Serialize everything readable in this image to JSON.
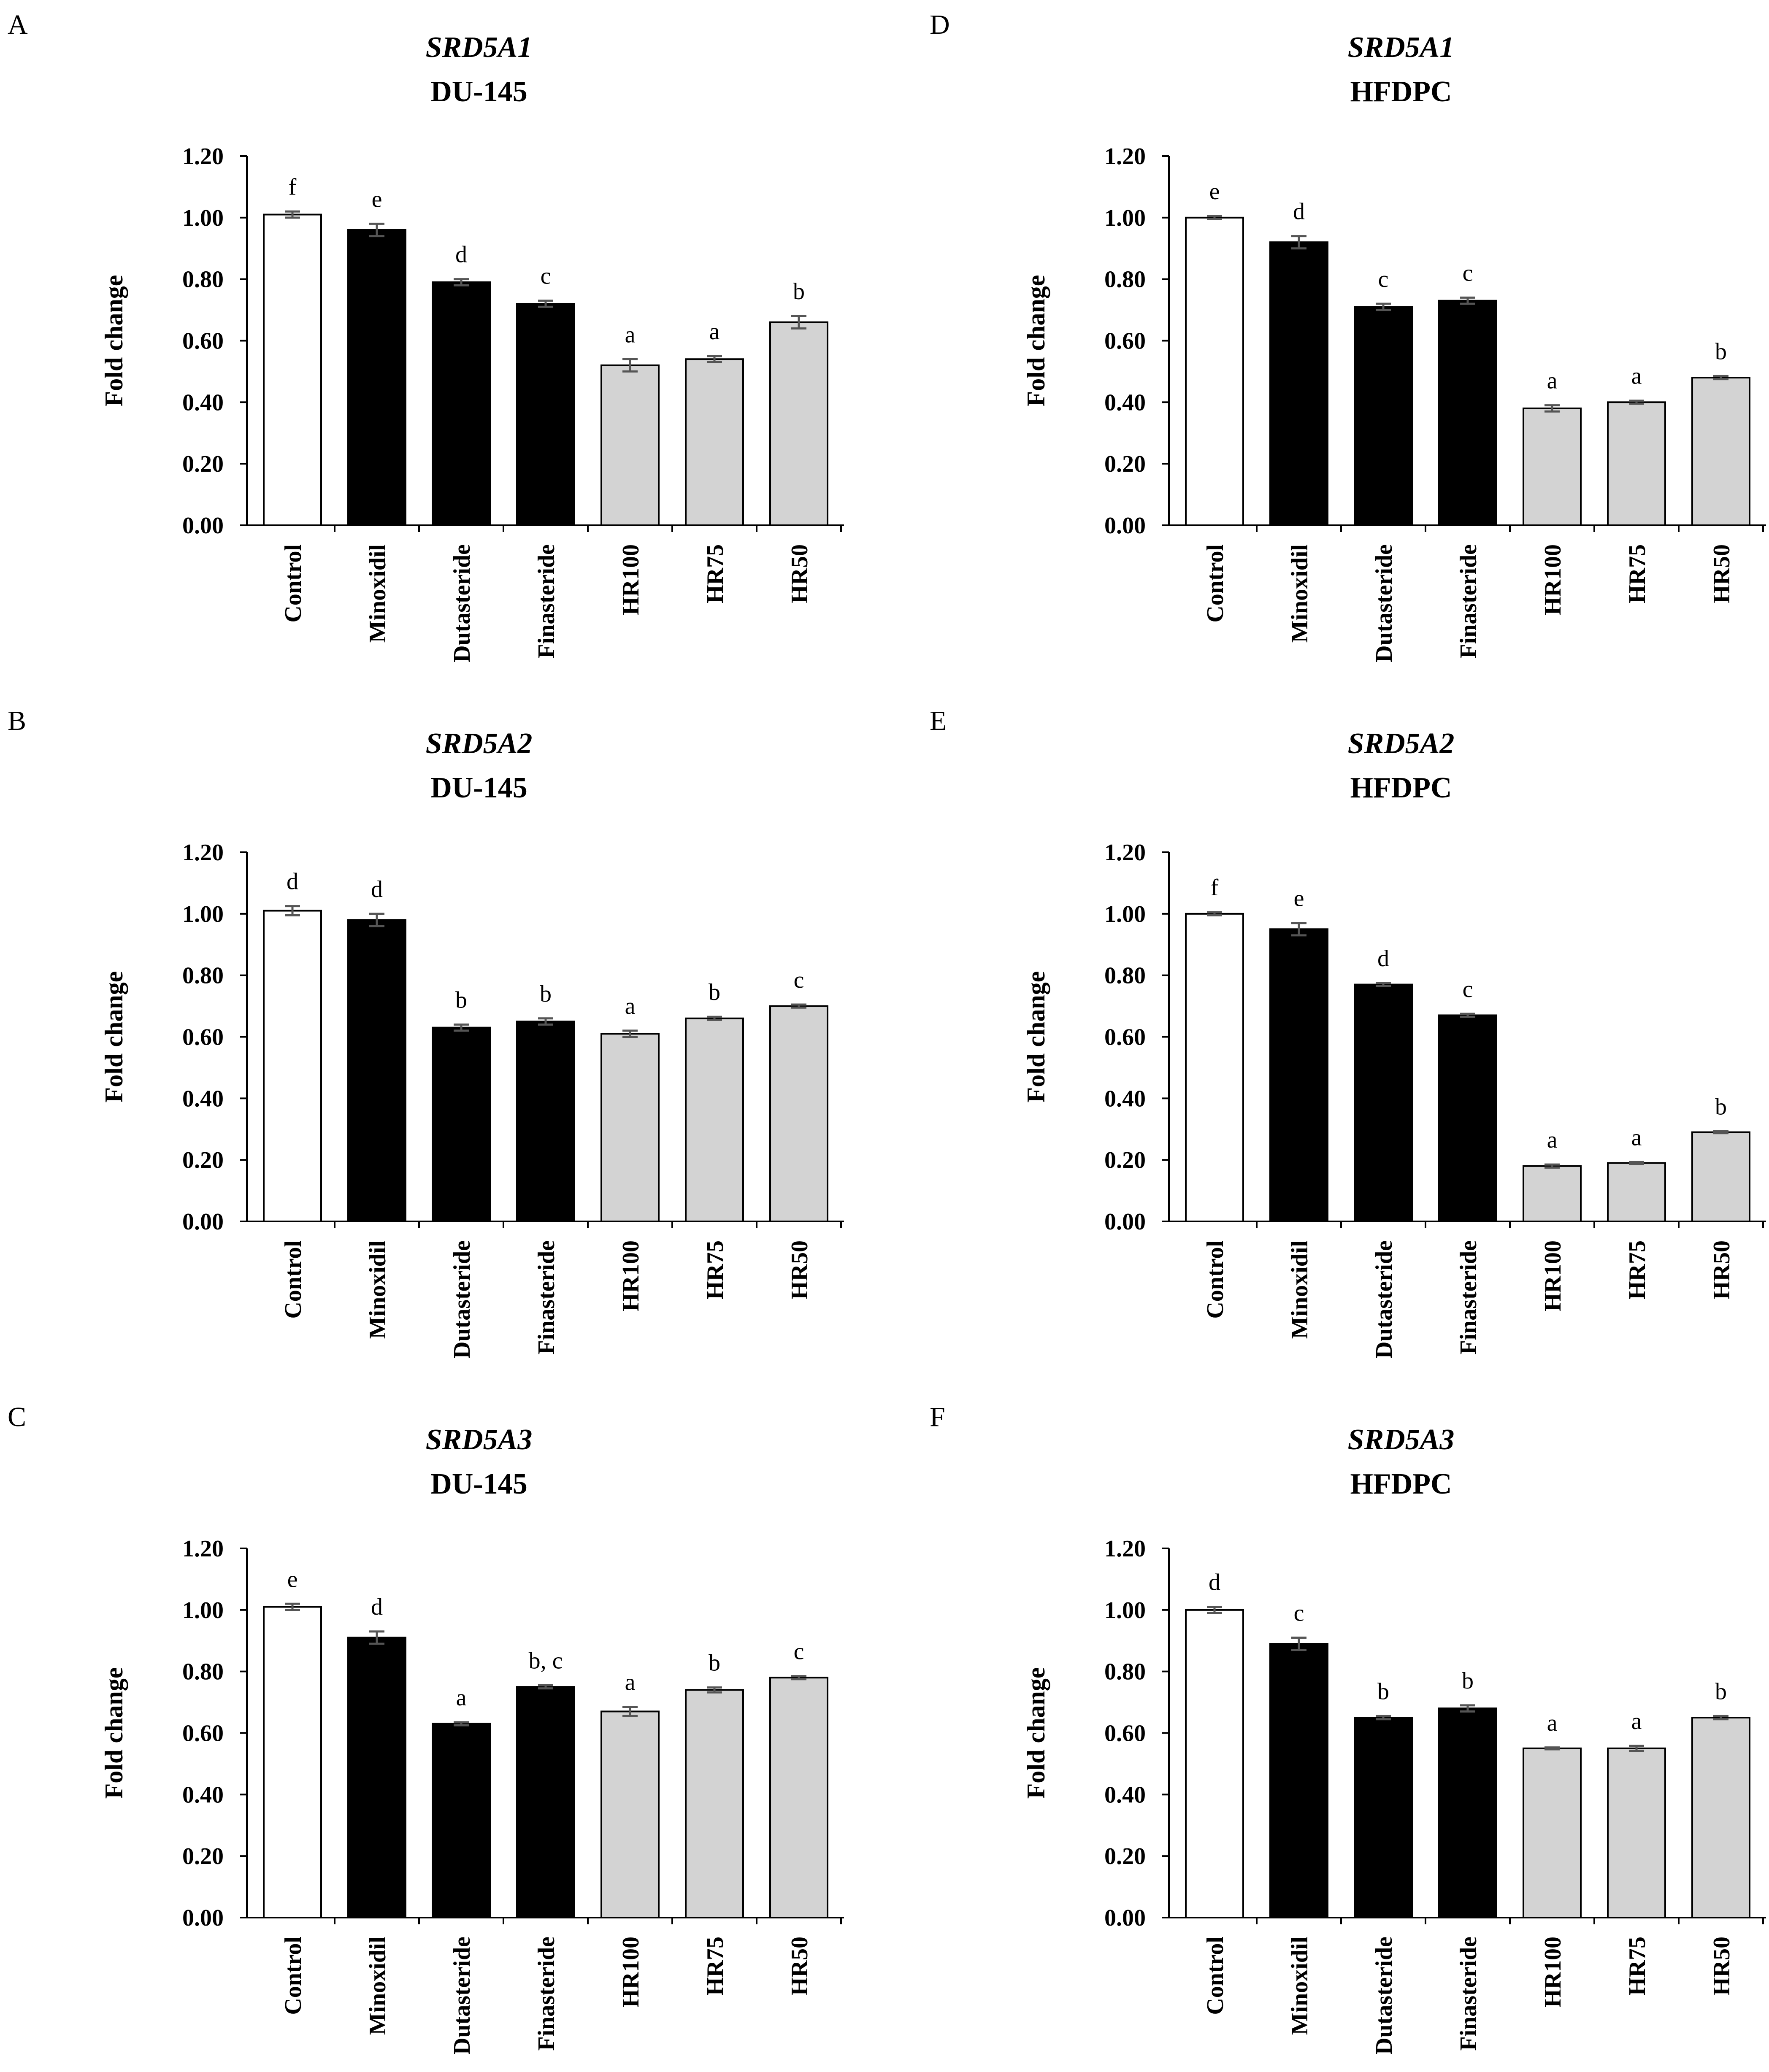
{
  "figure": {
    "categories": [
      "Control",
      "Minoxidil",
      "Dutasteride",
      "Finasteride",
      "HR100",
      "HR75",
      "HR50"
    ],
    "colors": {
      "control": "#ffffff",
      "drug": "#000000",
      "extract": "#d3d3d3",
      "error_bar": "#555555",
      "axis": "#000000"
    }
  },
  "chart_data": [
    {
      "panel": "A",
      "type": "bar",
      "gene": "SRD5A1",
      "cell_line": "DU-145",
      "title": "SRD5A1 DU-145",
      "xlabel": "",
      "ylabel": "Fold change",
      "ylim": [
        0,
        1.2
      ],
      "yticks": [
        "0.00",
        "0.20",
        "0.40",
        "0.60",
        "0.80",
        "1.00",
        "1.20"
      ],
      "categories": [
        "Control",
        "Minoxidil",
        "Dutasteride",
        "Finasteride",
        "HR100",
        "HR75",
        "HR50"
      ],
      "values": [
        1.01,
        0.96,
        0.79,
        0.72,
        0.52,
        0.54,
        0.66
      ],
      "errors": [
        0.01,
        0.02,
        0.01,
        0.01,
        0.02,
        0.01,
        0.02
      ],
      "letters": [
        "f",
        "e",
        "d",
        "c",
        "a",
        "a",
        "b"
      ]
    },
    {
      "panel": "B",
      "type": "bar",
      "gene": "SRD5A2",
      "cell_line": "DU-145",
      "title": "SRD5A2 DU-145",
      "xlabel": "",
      "ylabel": "Fold change",
      "ylim": [
        0,
        1.2
      ],
      "yticks": [
        "0.00",
        "0.20",
        "0.40",
        "0.60",
        "0.80",
        "1.00",
        "1.20"
      ],
      "categories": [
        "Control",
        "Minoxidil",
        "Dutasteride",
        "Finasteride",
        "HR100",
        "HR75",
        "HR50"
      ],
      "values": [
        1.01,
        0.98,
        0.63,
        0.65,
        0.61,
        0.66,
        0.7
      ],
      "errors": [
        0.015,
        0.02,
        0.01,
        0.01,
        0.01,
        0.005,
        0.005
      ],
      "letters": [
        "d",
        "d",
        "b",
        "b",
        "a",
        "b",
        "c"
      ]
    },
    {
      "panel": "C",
      "type": "bar",
      "gene": "SRD5A3",
      "cell_line": "DU-145",
      "title": "SRD5A3 DU-145",
      "xlabel": "",
      "ylabel": "Fold change",
      "ylim": [
        0,
        1.2
      ],
      "yticks": [
        "0.00",
        "0.20",
        "0.40",
        "0.60",
        "0.80",
        "1.00",
        "1.20"
      ],
      "categories": [
        "Control",
        "Minoxidil",
        "Dutasteride",
        "Finasteride",
        "HR100",
        "HR75",
        "HR50"
      ],
      "values": [
        1.01,
        0.91,
        0.63,
        0.75,
        0.67,
        0.74,
        0.78
      ],
      "errors": [
        0.01,
        0.02,
        0.005,
        0.005,
        0.015,
        0.008,
        0.005
      ],
      "letters": [
        "e",
        "d",
        "a",
        "b, c",
        "a",
        "b",
        "c"
      ]
    },
    {
      "panel": "D",
      "type": "bar",
      "gene": "SRD5A1",
      "cell_line": "HFDPC",
      "title": "SRD5A1 HFDPC",
      "xlabel": "",
      "ylabel": "Fold change",
      "ylim": [
        0,
        1.2
      ],
      "yticks": [
        "0.00",
        "0.20",
        "0.40",
        "0.60",
        "0.80",
        "1.00",
        "1.20"
      ],
      "categories": [
        "Control",
        "Minoxidil",
        "Dutasteride",
        "Finasteride",
        "HR100",
        "HR75",
        "HR50"
      ],
      "values": [
        1.0,
        0.92,
        0.71,
        0.73,
        0.38,
        0.4,
        0.48
      ],
      "errors": [
        0.005,
        0.02,
        0.01,
        0.01,
        0.01,
        0.005,
        0.005
      ],
      "letters": [
        "e",
        "d",
        "c",
        "c",
        "a",
        "a",
        "b"
      ]
    },
    {
      "panel": "E",
      "type": "bar",
      "gene": "SRD5A2",
      "cell_line": "HFDPC",
      "title": "SRD5A2 HFDPC",
      "xlabel": "",
      "ylabel": "Fold change",
      "ylim": [
        0,
        1.2
      ],
      "yticks": [
        "0.00",
        "0.20",
        "0.40",
        "0.60",
        "0.80",
        "1.00",
        "1.20"
      ],
      "categories": [
        "Control",
        "Minoxidil",
        "Dutasteride",
        "Finasteride",
        "HR100",
        "HR75",
        "HR50"
      ],
      "values": [
        1.0,
        0.95,
        0.77,
        0.67,
        0.18,
        0.19,
        0.29
      ],
      "errors": [
        0.005,
        0.02,
        0.005,
        0.005,
        0.005,
        0.003,
        0.003
      ],
      "letters": [
        "f",
        "e",
        "d",
        "c",
        "a",
        "a",
        "b"
      ]
    },
    {
      "panel": "F",
      "type": "bar",
      "gene": "SRD5A3",
      "cell_line": "HFDPC",
      "title": "SRD5A3 HFDPC",
      "xlabel": "",
      "ylabel": "Fold change",
      "ylim": [
        0,
        1.2
      ],
      "yticks": [
        "0.00",
        "0.20",
        "0.40",
        "0.60",
        "0.80",
        "1.00",
        "1.20"
      ],
      "categories": [
        "Control",
        "Minoxidil",
        "Dutasteride",
        "Finasteride",
        "HR100",
        "HR75",
        "HR50"
      ],
      "values": [
        1.0,
        0.89,
        0.65,
        0.68,
        0.55,
        0.55,
        0.65
      ],
      "errors": [
        0.01,
        0.02,
        0.005,
        0.01,
        0.003,
        0.008,
        0.005
      ],
      "letters": [
        "d",
        "c",
        "b",
        "b",
        "a",
        "a",
        "b"
      ]
    }
  ]
}
